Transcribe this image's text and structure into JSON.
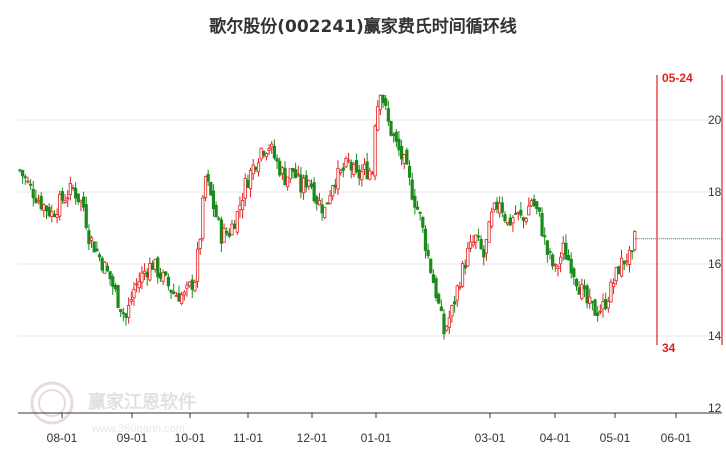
{
  "chart_data": {
    "type": "candlestick",
    "title": "歌尔股份(002241)赢家费氏时间循环线",
    "xlabel": "",
    "ylabel": "",
    "x_ticks": [
      "08-01",
      "09-01",
      "10-01",
      "11-01",
      "12-01",
      "01-01",
      "03-01",
      "04-01",
      "05-01",
      "06-01"
    ],
    "y_ticks": [
      12,
      14,
      16,
      18,
      20
    ],
    "ylim": [
      12,
      21.8
    ],
    "grid": true,
    "colors": {
      "up": "#e02020",
      "down": "#1a8a1a",
      "marker": "#e02020"
    },
    "series_anchor_closes": [
      [
        0,
        18.6
      ],
      [
        4,
        18.1
      ],
      [
        8,
        17.7
      ],
      [
        12,
        17.4
      ],
      [
        16,
        17.8
      ],
      [
        20,
        18.1
      ],
      [
        24,
        17.6
      ],
      [
        26,
        16.8
      ],
      [
        30,
        16.2
      ],
      [
        34,
        15.6
      ],
      [
        37,
        15.0
      ],
      [
        40,
        14.5
      ],
      [
        43,
        15.3
      ],
      [
        47,
        15.8
      ],
      [
        50,
        16.0
      ],
      [
        54,
        15.6
      ],
      [
        58,
        15.2
      ],
      [
        62,
        15.1
      ],
      [
        66,
        15.6
      ],
      [
        68,
        16.8
      ],
      [
        70,
        18.4
      ],
      [
        73,
        17.6
      ],
      [
        76,
        16.8
      ],
      [
        79,
        16.9
      ],
      [
        82,
        17.4
      ],
      [
        85,
        18.2
      ],
      [
        88,
        18.7
      ],
      [
        91,
        19.2
      ],
      [
        94,
        19.3
      ],
      [
        97,
        18.8
      ],
      [
        100,
        18.4
      ],
      [
        103,
        18.6
      ],
      [
        106,
        18.1
      ],
      [
        109,
        18.4
      ],
      [
        112,
        17.8
      ],
      [
        115,
        17.5
      ],
      [
        118,
        18.3
      ],
      [
        121,
        18.5
      ],
      [
        124,
        18.8
      ],
      [
        127,
        18.4
      ],
      [
        130,
        18.6
      ],
      [
        133,
        18.6
      ],
      [
        134,
        20.0
      ],
      [
        136,
        20.9
      ],
      [
        139,
        19.9
      ],
      [
        142,
        19.3
      ],
      [
        145,
        18.8
      ],
      [
        148,
        18.0
      ],
      [
        151,
        17.3
      ],
      [
        154,
        16.2
      ],
      [
        157,
        15.2
      ],
      [
        160,
        14.1
      ],
      [
        163,
        14.7
      ],
      [
        166,
        15.6
      ],
      [
        169,
        16.3
      ],
      [
        172,
        16.7
      ],
      [
        175,
        16.2
      ],
      [
        178,
        17.3
      ],
      [
        181,
        17.8
      ],
      [
        184,
        17.1
      ],
      [
        187,
        17.4
      ],
      [
        190,
        17.2
      ],
      [
        193,
        17.8
      ],
      [
        196,
        17.3
      ],
      [
        199,
        16.3
      ],
      [
        202,
        15.8
      ],
      [
        205,
        16.4
      ],
      [
        208,
        16.0
      ],
      [
        211,
        15.4
      ],
      [
        214,
        14.9
      ],
      [
        217,
        14.7
      ],
      [
        220,
        14.8
      ],
      [
        223,
        15.3
      ],
      [
        226,
        15.9
      ],
      [
        229,
        16.2
      ],
      [
        231,
        16.1
      ],
      [
        232,
        16.7
      ]
    ],
    "last_close_line": 16.7,
    "markers": [
      {
        "label": "05-24",
        "position": "top"
      },
      {
        "label": "34",
        "position": "bottom"
      }
    ]
  },
  "watermark": {
    "text": "赢家江恩软件",
    "url": "www.360gann.com"
  }
}
